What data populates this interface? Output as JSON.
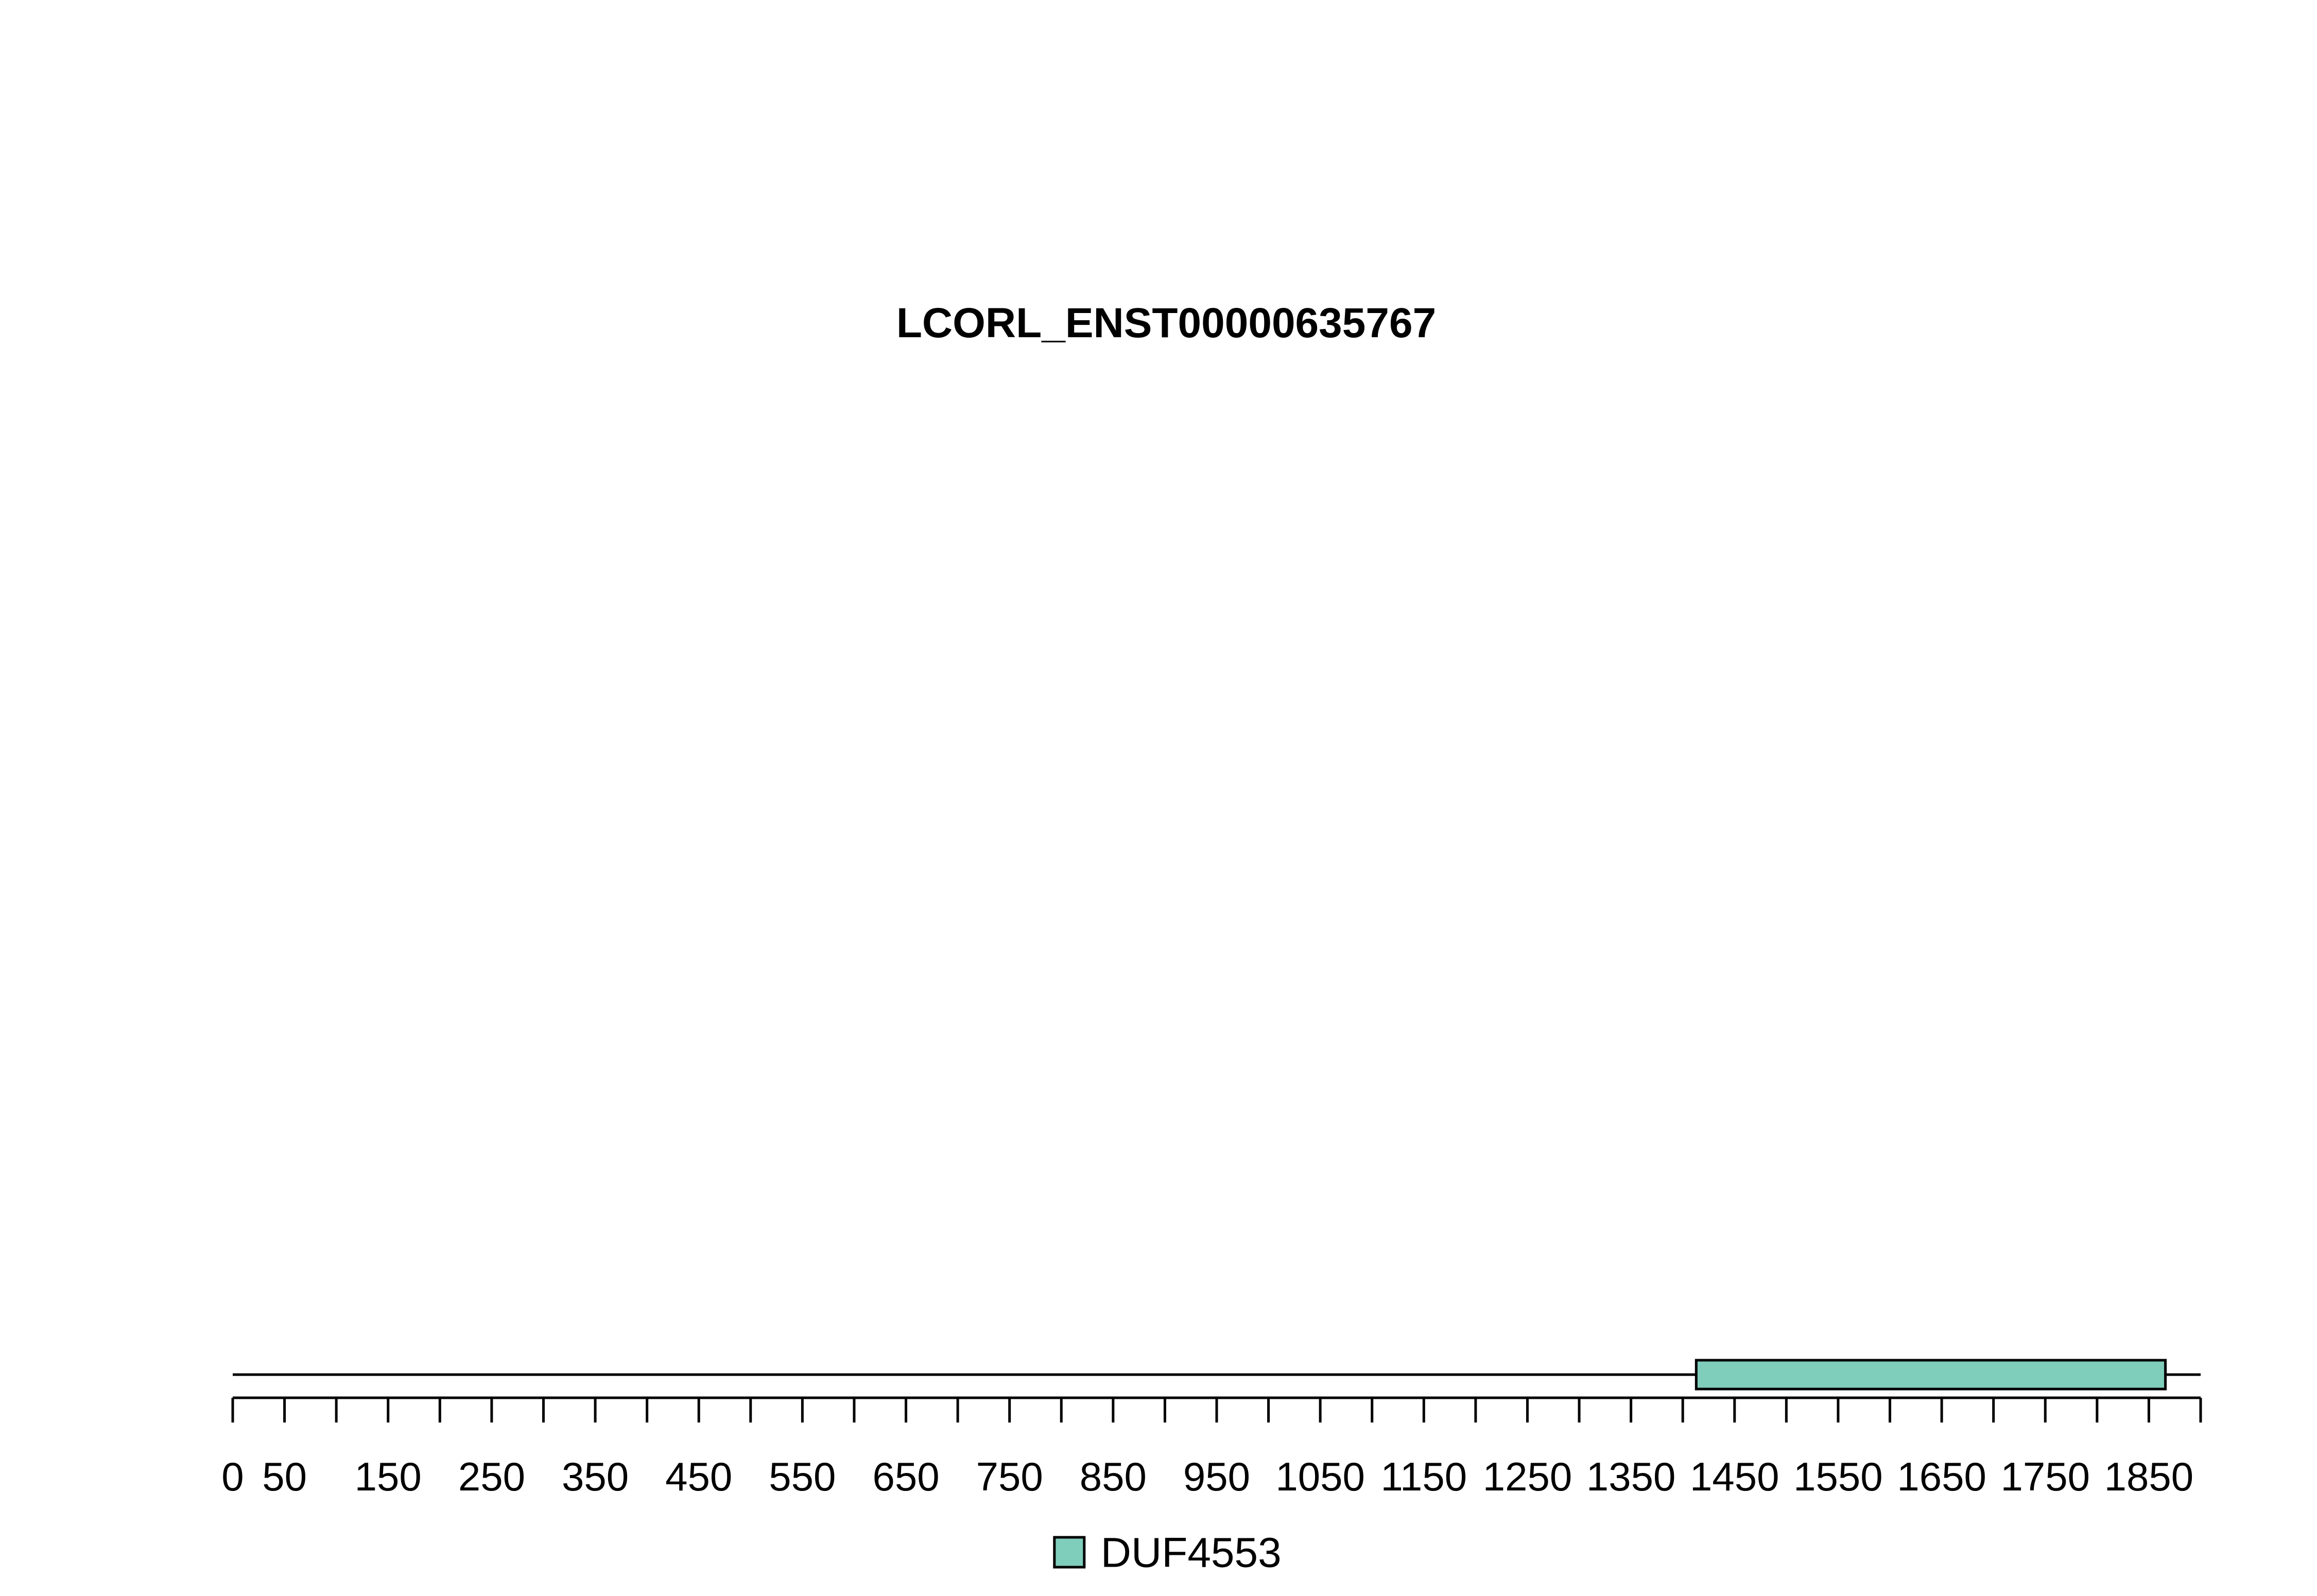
{
  "chart_data": {
    "type": "protein-domain-diagram",
    "title": "LCORL_ENST00000635767",
    "protein_length": 1900,
    "axis": {
      "range": [
        0,
        1900
      ],
      "tick_step": 50,
      "tick_labels": [
        0,
        50,
        150,
        250,
        350,
        450,
        550,
        650,
        750,
        850,
        950,
        1050,
        1150,
        1250,
        1350,
        1450,
        1550,
        1650,
        1750,
        1850
      ]
    },
    "domains": [
      {
        "name": "DUF4553",
        "start": 1413,
        "end": 1866,
        "color": "#7fcdbb"
      }
    ],
    "legend": [
      {
        "label": "DUF4553",
        "color": "#7fcdbb"
      }
    ]
  }
}
